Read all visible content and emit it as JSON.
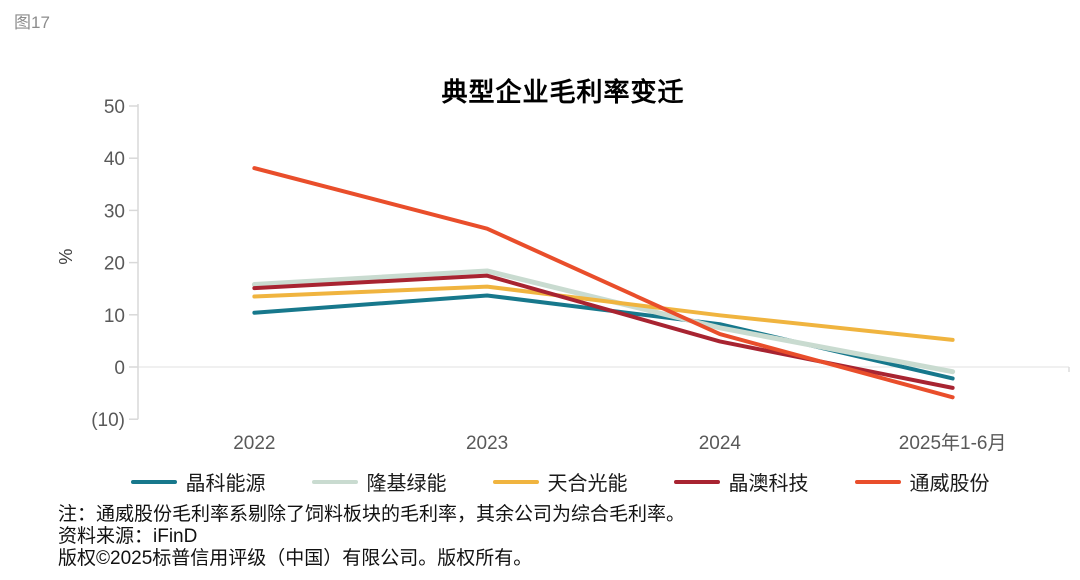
{
  "figure_label": "图17",
  "chart_data": {
    "type": "line",
    "title": "典型企业毛利率变迁",
    "xlabel": "",
    "ylabel": "%",
    "categories": [
      "2022",
      "2023",
      "2024",
      "2025年1-6月"
    ],
    "series": [
      {
        "name": "晶科能源",
        "color": "#17788C",
        "values": [
          10.4,
          13.7,
          8.2,
          -2.2
        ]
      },
      {
        "name": "隆基绿能",
        "color": "#C9DBD0",
        "values": [
          15.8,
          18.4,
          7.5,
          -0.9
        ]
      },
      {
        "name": "天合光能",
        "color": "#F0B43F",
        "values": [
          13.5,
          15.4,
          9.9,
          5.2
        ]
      },
      {
        "name": "晶澳科技",
        "color": "#A82431",
        "values": [
          15.1,
          17.5,
          4.9,
          -4.0
        ]
      },
      {
        "name": "通威股份",
        "color": "#E94E2B",
        "values": [
          38.1,
          26.5,
          6.3,
          -5.8
        ]
      }
    ],
    "ylim": [
      -10,
      50
    ],
    "yticks": [
      50,
      40,
      30,
      20,
      10,
      0,
      -10
    ],
    "ytick_labels": [
      "50",
      "40",
      "30",
      "20",
      "10",
      "0",
      "(10)"
    ],
    "grid": "zero-line-only",
    "legend_position": "bottom"
  },
  "notes": {
    "note": "注：通威股份毛利率系剔除了饲料板块的毛利率，其余公司为综合毛利率。",
    "source": "资料来源：iFinD",
    "copyright": "版权©2025标普信用评级（中国）有限公司。版权所有。"
  }
}
